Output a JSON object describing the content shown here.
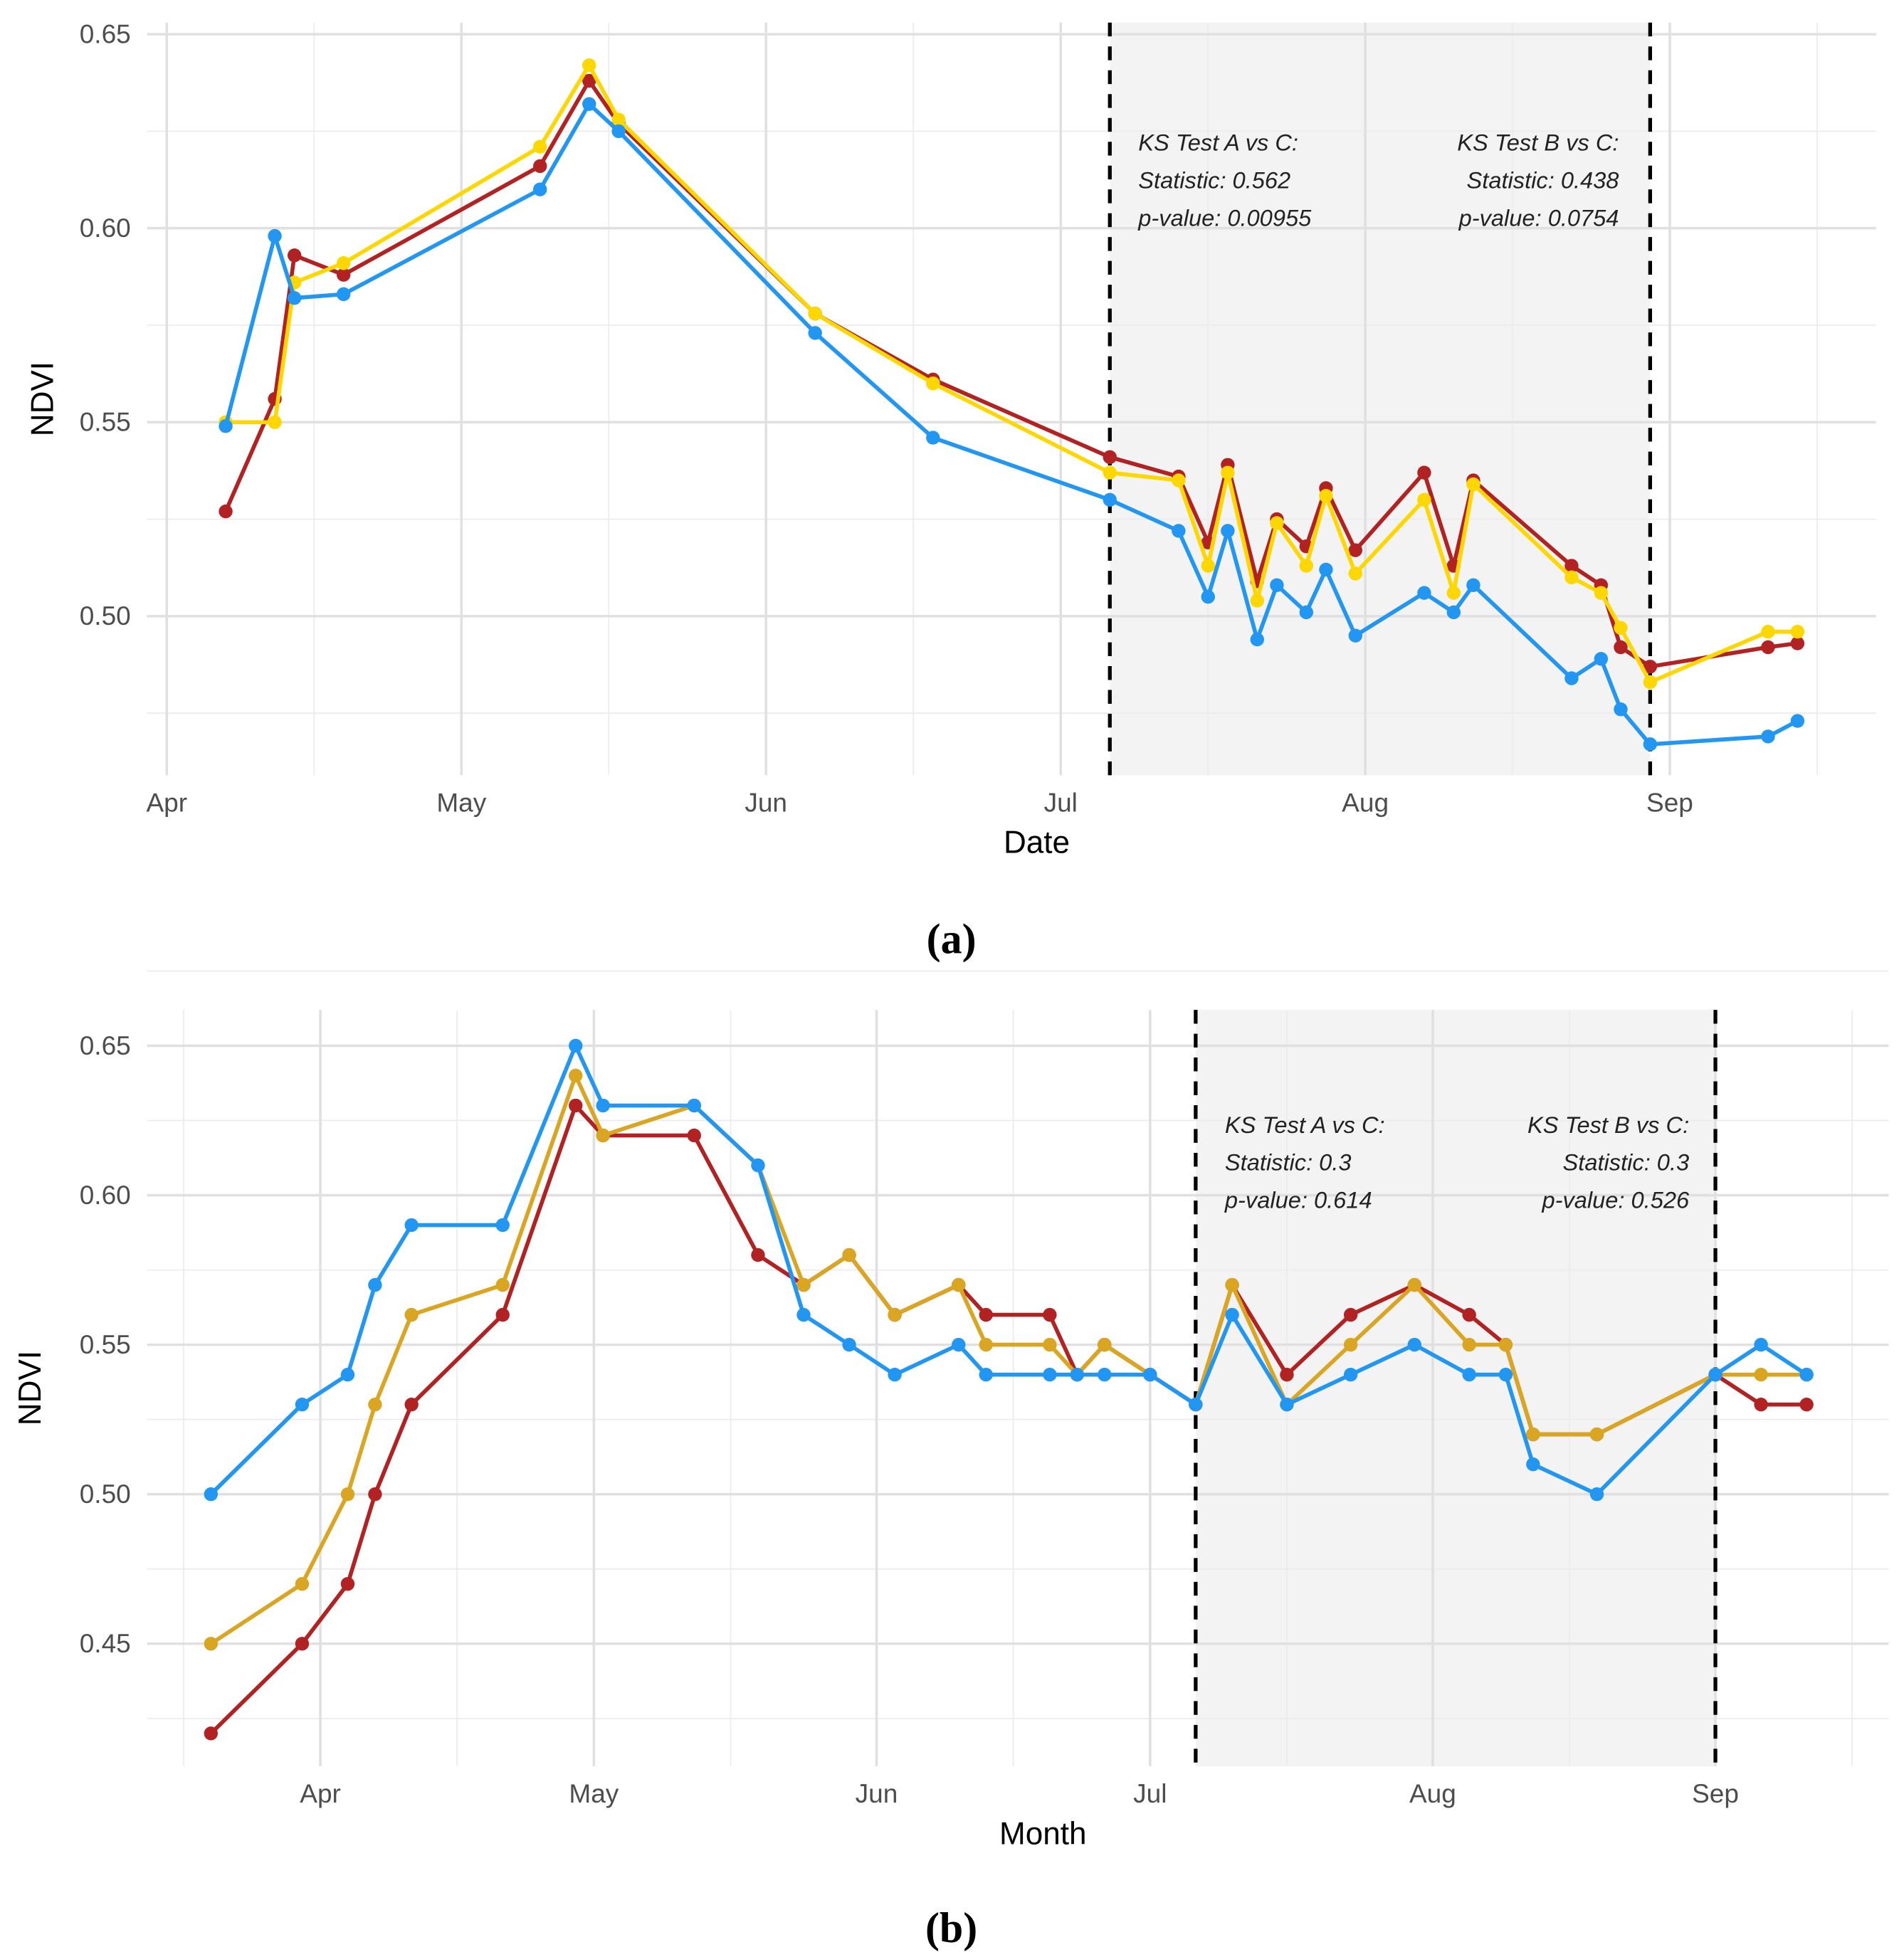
{
  "chart_data": [
    {
      "type": "line",
      "panel_label": "(a)",
      "xlabel": "Date",
      "ylabel": "NDVI",
      "x_unit": "days since Apr 1",
      "xlim": [
        -2,
        174
      ],
      "ylim": [
        0.459,
        0.653
      ],
      "yticks": [
        0.5,
        0.55,
        0.6,
        0.65
      ],
      "ytick_labels": [
        "0.50",
        "0.55",
        "0.60",
        "0.65"
      ],
      "xticks": [
        0,
        30,
        61,
        91,
        122,
        153
      ],
      "xtick_labels": [
        "Apr",
        "May",
        "Jun",
        "Jul",
        "Aug",
        "Sep"
      ],
      "grid": true,
      "shaded_period": [
        96,
        151
      ],
      "annotations": [
        {
          "lines": [
            "KS Test A vs C:",
            "Statistic: 0.562",
            "p-value: 0.00955"
          ],
          "align": "left"
        },
        {
          "lines": [
            "KS Test B vs C:",
            "Statistic: 0.438",
            "p-value: 0.0754"
          ],
          "align": "right"
        }
      ],
      "x": [
        6,
        11,
        13,
        18,
        38,
        43,
        46,
        66,
        78,
        96,
        103,
        106,
        108,
        111,
        113,
        116,
        118,
        121,
        128,
        131,
        133,
        143,
        146,
        148,
        151,
        163,
        166
      ],
      "series": [
        {
          "name": "A",
          "color": "#B22222",
          "values": [
            0.527,
            0.556,
            0.593,
            0.588,
            0.616,
            0.638,
            0.627,
            0.578,
            0.561,
            0.541,
            0.536,
            0.519,
            0.539,
            0.509,
            0.525,
            0.518,
            0.533,
            0.517,
            0.537,
            0.513,
            0.535,
            0.513,
            0.508,
            0.492,
            0.487,
            0.492,
            0.493
          ]
        },
        {
          "name": "B",
          "color": "#FFD700",
          "values": [
            0.55,
            0.55,
            0.586,
            0.591,
            0.621,
            0.642,
            0.628,
            0.578,
            0.56,
            0.537,
            0.535,
            0.513,
            0.537,
            0.504,
            0.524,
            0.513,
            0.531,
            0.511,
            0.53,
            0.506,
            0.534,
            0.51,
            0.506,
            0.497,
            0.483,
            0.496,
            0.496
          ]
        },
        {
          "name": "C",
          "color": "#2196F3",
          "values": [
            0.549,
            0.598,
            0.582,
            0.583,
            0.61,
            0.632,
            0.625,
            0.573,
            0.546,
            0.53,
            0.522,
            0.505,
            0.522,
            0.494,
            0.508,
            0.501,
            0.512,
            0.495,
            0.506,
            0.501,
            0.508,
            0.484,
            0.489,
            0.476,
            0.467,
            0.469,
            0.473
          ]
        }
      ]
    },
    {
      "type": "line",
      "panel_label": "(b)",
      "xlabel": "Month",
      "ylabel": "NDVI",
      "x_unit": "days since Apr 1",
      "xlim": [
        -19,
        172
      ],
      "ylim": [
        0.409,
        0.662
      ],
      "yticks": [
        0.45,
        0.5,
        0.55,
        0.6,
        0.65
      ],
      "ytick_labels": [
        "0.45",
        "0.50",
        "0.55",
        "0.60",
        "0.65"
      ],
      "xticks": [
        0,
        30,
        61,
        91,
        122,
        153
      ],
      "xtick_labels": [
        "Apr",
        "May",
        "Jun",
        "Jul",
        "Aug",
        "Sep"
      ],
      "grid": true,
      "shaded_period": [
        96,
        153
      ],
      "annotations": [
        {
          "lines": [
            "KS Test A vs C:",
            "Statistic: 0.3",
            "p-value: 0.614"
          ],
          "align": "left"
        },
        {
          "lines": [
            "KS Test B vs C:",
            "Statistic: 0.3",
            "p-value: 0.526"
          ],
          "align": "right"
        }
      ],
      "x": [
        -12,
        -2,
        3,
        6,
        10,
        20,
        28,
        31,
        41,
        48,
        53,
        58,
        63,
        70,
        73,
        80,
        83,
        86,
        91,
        96,
        100,
        106,
        113,
        120,
        126,
        130,
        133,
        140,
        153,
        158,
        163
      ],
      "series": [
        {
          "name": "A",
          "color": "#B22222",
          "values": [
            0.42,
            0.45,
            0.47,
            0.5,
            0.53,
            0.56,
            0.63,
            0.62,
            0.62,
            0.58,
            0.57,
            0.58,
            0.56,
            0.57,
            0.56,
            0.56,
            0.54,
            0.55,
            0.54,
            0.53,
            0.57,
            0.54,
            0.56,
            0.57,
            0.56,
            0.55,
            0.52,
            0.52,
            0.54,
            0.53,
            0.53
          ]
        },
        {
          "name": "B",
          "color": "#DAA520",
          "values": [
            0.45,
            0.47,
            0.5,
            0.53,
            0.56,
            0.57,
            0.64,
            0.62,
            0.63,
            0.61,
            0.57,
            0.58,
            0.56,
            0.57,
            0.55,
            0.55,
            0.54,
            0.55,
            0.54,
            0.53,
            0.57,
            0.53,
            0.55,
            0.57,
            0.55,
            0.55,
            0.52,
            0.52,
            0.54,
            0.54,
            0.54
          ]
        },
        {
          "name": "C",
          "color": "#2196F3",
          "values": [
            0.5,
            0.53,
            0.54,
            0.57,
            0.59,
            0.59,
            0.65,
            0.63,
            0.63,
            0.61,
            0.56,
            0.55,
            0.54,
            0.55,
            0.54,
            0.54,
            0.54,
            0.54,
            0.54,
            0.53,
            0.56,
            0.53,
            0.54,
            0.55,
            0.54,
            0.54,
            0.51,
            0.5,
            0.54,
            0.55,
            0.54
          ]
        }
      ]
    }
  ]
}
